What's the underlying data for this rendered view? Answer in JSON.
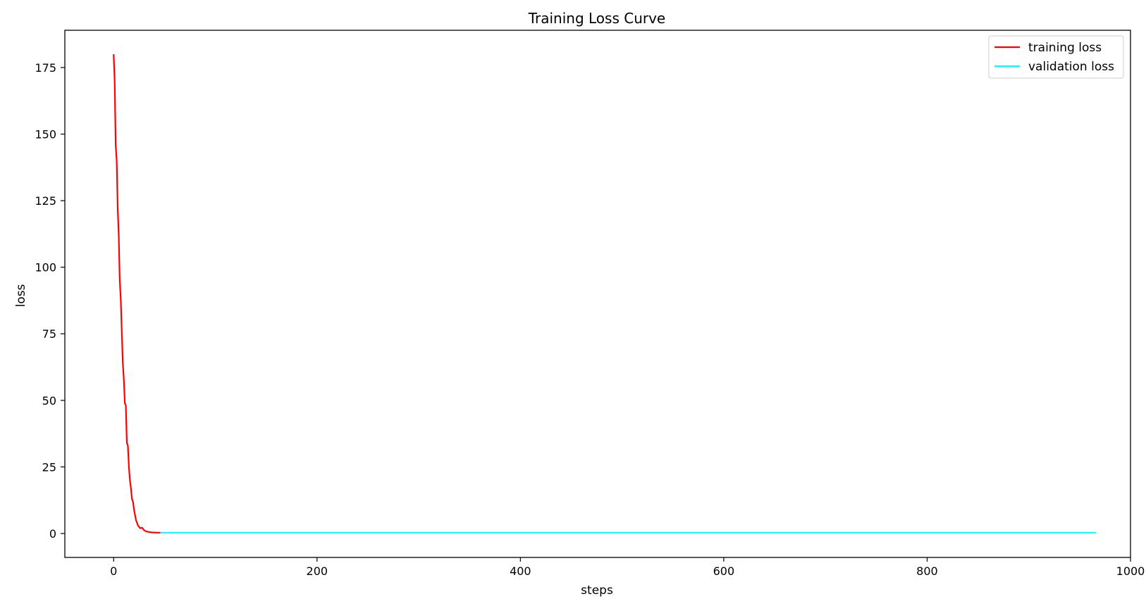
{
  "chart_data": {
    "type": "line",
    "title": "Training Loss Curve",
    "xlabel": "steps",
    "ylabel": "loss",
    "xlim": [
      -48,
      1000
    ],
    "ylim": [
      -9,
      189
    ],
    "xticks": [
      0,
      200,
      400,
      600,
      800,
      1000
    ],
    "yticks": [
      0,
      25,
      50,
      75,
      100,
      125,
      150,
      175
    ],
    "grid": false,
    "legend_position": "top-right",
    "series": [
      {
        "name": "training loss",
        "color": "#ff0000",
        "x": [
          0,
          1,
          2,
          3,
          4,
          5,
          6,
          7,
          8,
          9,
          10,
          11,
          12,
          13,
          14,
          15,
          16,
          17,
          18,
          19,
          20,
          22,
          24,
          26,
          28,
          30,
          32,
          34,
          36,
          38,
          40,
          42,
          44,
          46
        ],
        "y": [
          180,
          170,
          146,
          140,
          122,
          112,
          95,
          88,
          76,
          64,
          58,
          49,
          48,
          34,
          33,
          25,
          20,
          17,
          13,
          12,
          9,
          5,
          3,
          2,
          2.2,
          1.2,
          0.8,
          0.6,
          0.5,
          0.4,
          0.35,
          0.3,
          0.3,
          0.3
        ]
      },
      {
        "name": "validation loss",
        "color": "#00ffff",
        "x": [
          46,
          100,
          150,
          200,
          250,
          300,
          350,
          400,
          450,
          500,
          550,
          600,
          650,
          700,
          750,
          800,
          850,
          900,
          966
        ],
        "y": [
          0.3,
          0.3,
          0.3,
          0.3,
          0.3,
          0.3,
          0.3,
          0.3,
          0.3,
          0.3,
          0.3,
          0.3,
          0.3,
          0.3,
          0.3,
          0.3,
          0.3,
          0.3,
          0.3
        ]
      }
    ]
  }
}
